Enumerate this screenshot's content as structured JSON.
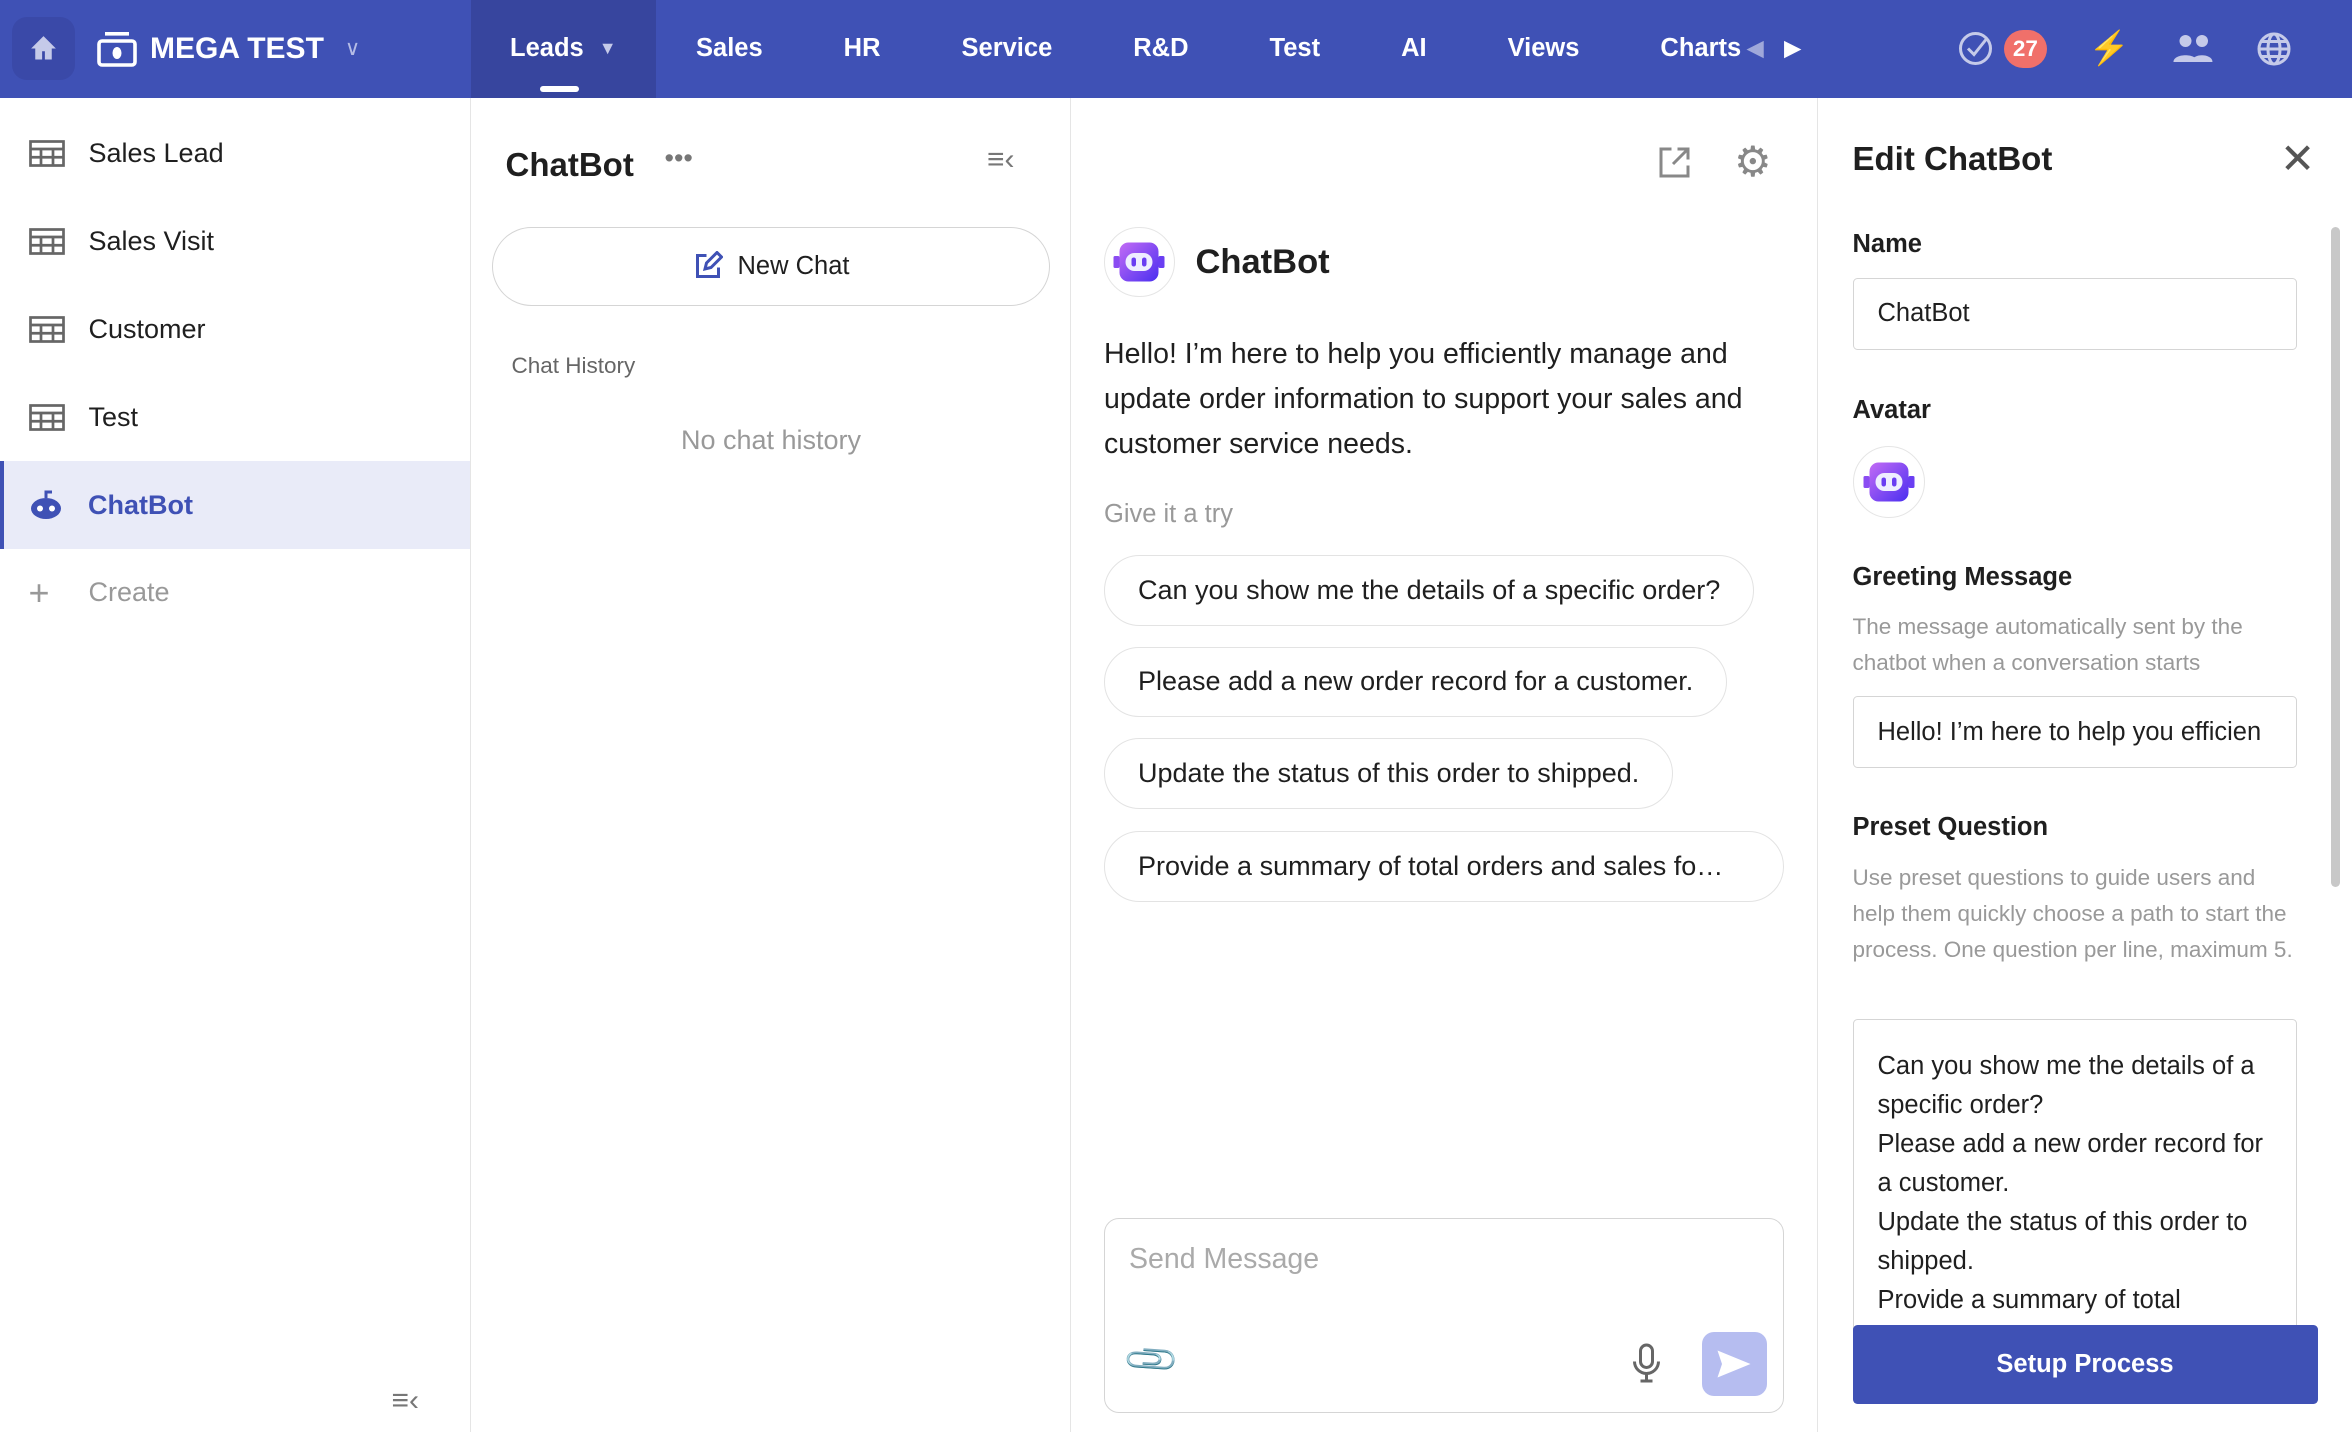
{
  "topbar": {
    "workspace": "MEGA TEST",
    "tabs": [
      "Leads",
      "Sales",
      "HR",
      "Service",
      "R&D",
      "Test",
      "AI",
      "Views",
      "Charts"
    ],
    "notification_count": "27",
    "accent": "#3f51b5"
  },
  "sidebar": {
    "items": [
      "Sales Lead",
      "Sales Visit",
      "Customer",
      "Test",
      "ChatBot"
    ],
    "create": "Create"
  },
  "history": {
    "title": "ChatBot",
    "new_chat": "New Chat",
    "section": "Chat History",
    "empty": "No chat history"
  },
  "chat": {
    "bot_name": "ChatBot",
    "greeting": "Hello! I’m here to help you efficiently manage and update order information to support your sales and customer service needs.",
    "try_label": "Give it a try",
    "questions": [
      "Can you show me the details of a specific order?",
      "Please add a new order record for a customer.",
      "Update the status of this order to shipped.",
      "Provide a summary of total orders and sales fo…"
    ],
    "input_placeholder": "Send Message"
  },
  "edit": {
    "title": "Edit ChatBot",
    "name_label": "Name",
    "name_value": "ChatBot",
    "avatar_label": "Avatar",
    "greeting_label": "Greeting Message",
    "greeting_desc": "The message automatically sent by the chatbot when a conversation starts",
    "greeting_value": "Hello! I’m here to help you efficien",
    "preset_label": "Preset Question",
    "preset_desc": "Use preset questions to guide users and help them quickly choose a path to start the process. One question per line, maximum 5.",
    "preset_value": "Can you show me the details of a specific order?\nPlease add a new order record for a customer.\nUpdate the status of this order to shipped.\nProvide a summary of total",
    "setup_button": "Setup Process"
  }
}
